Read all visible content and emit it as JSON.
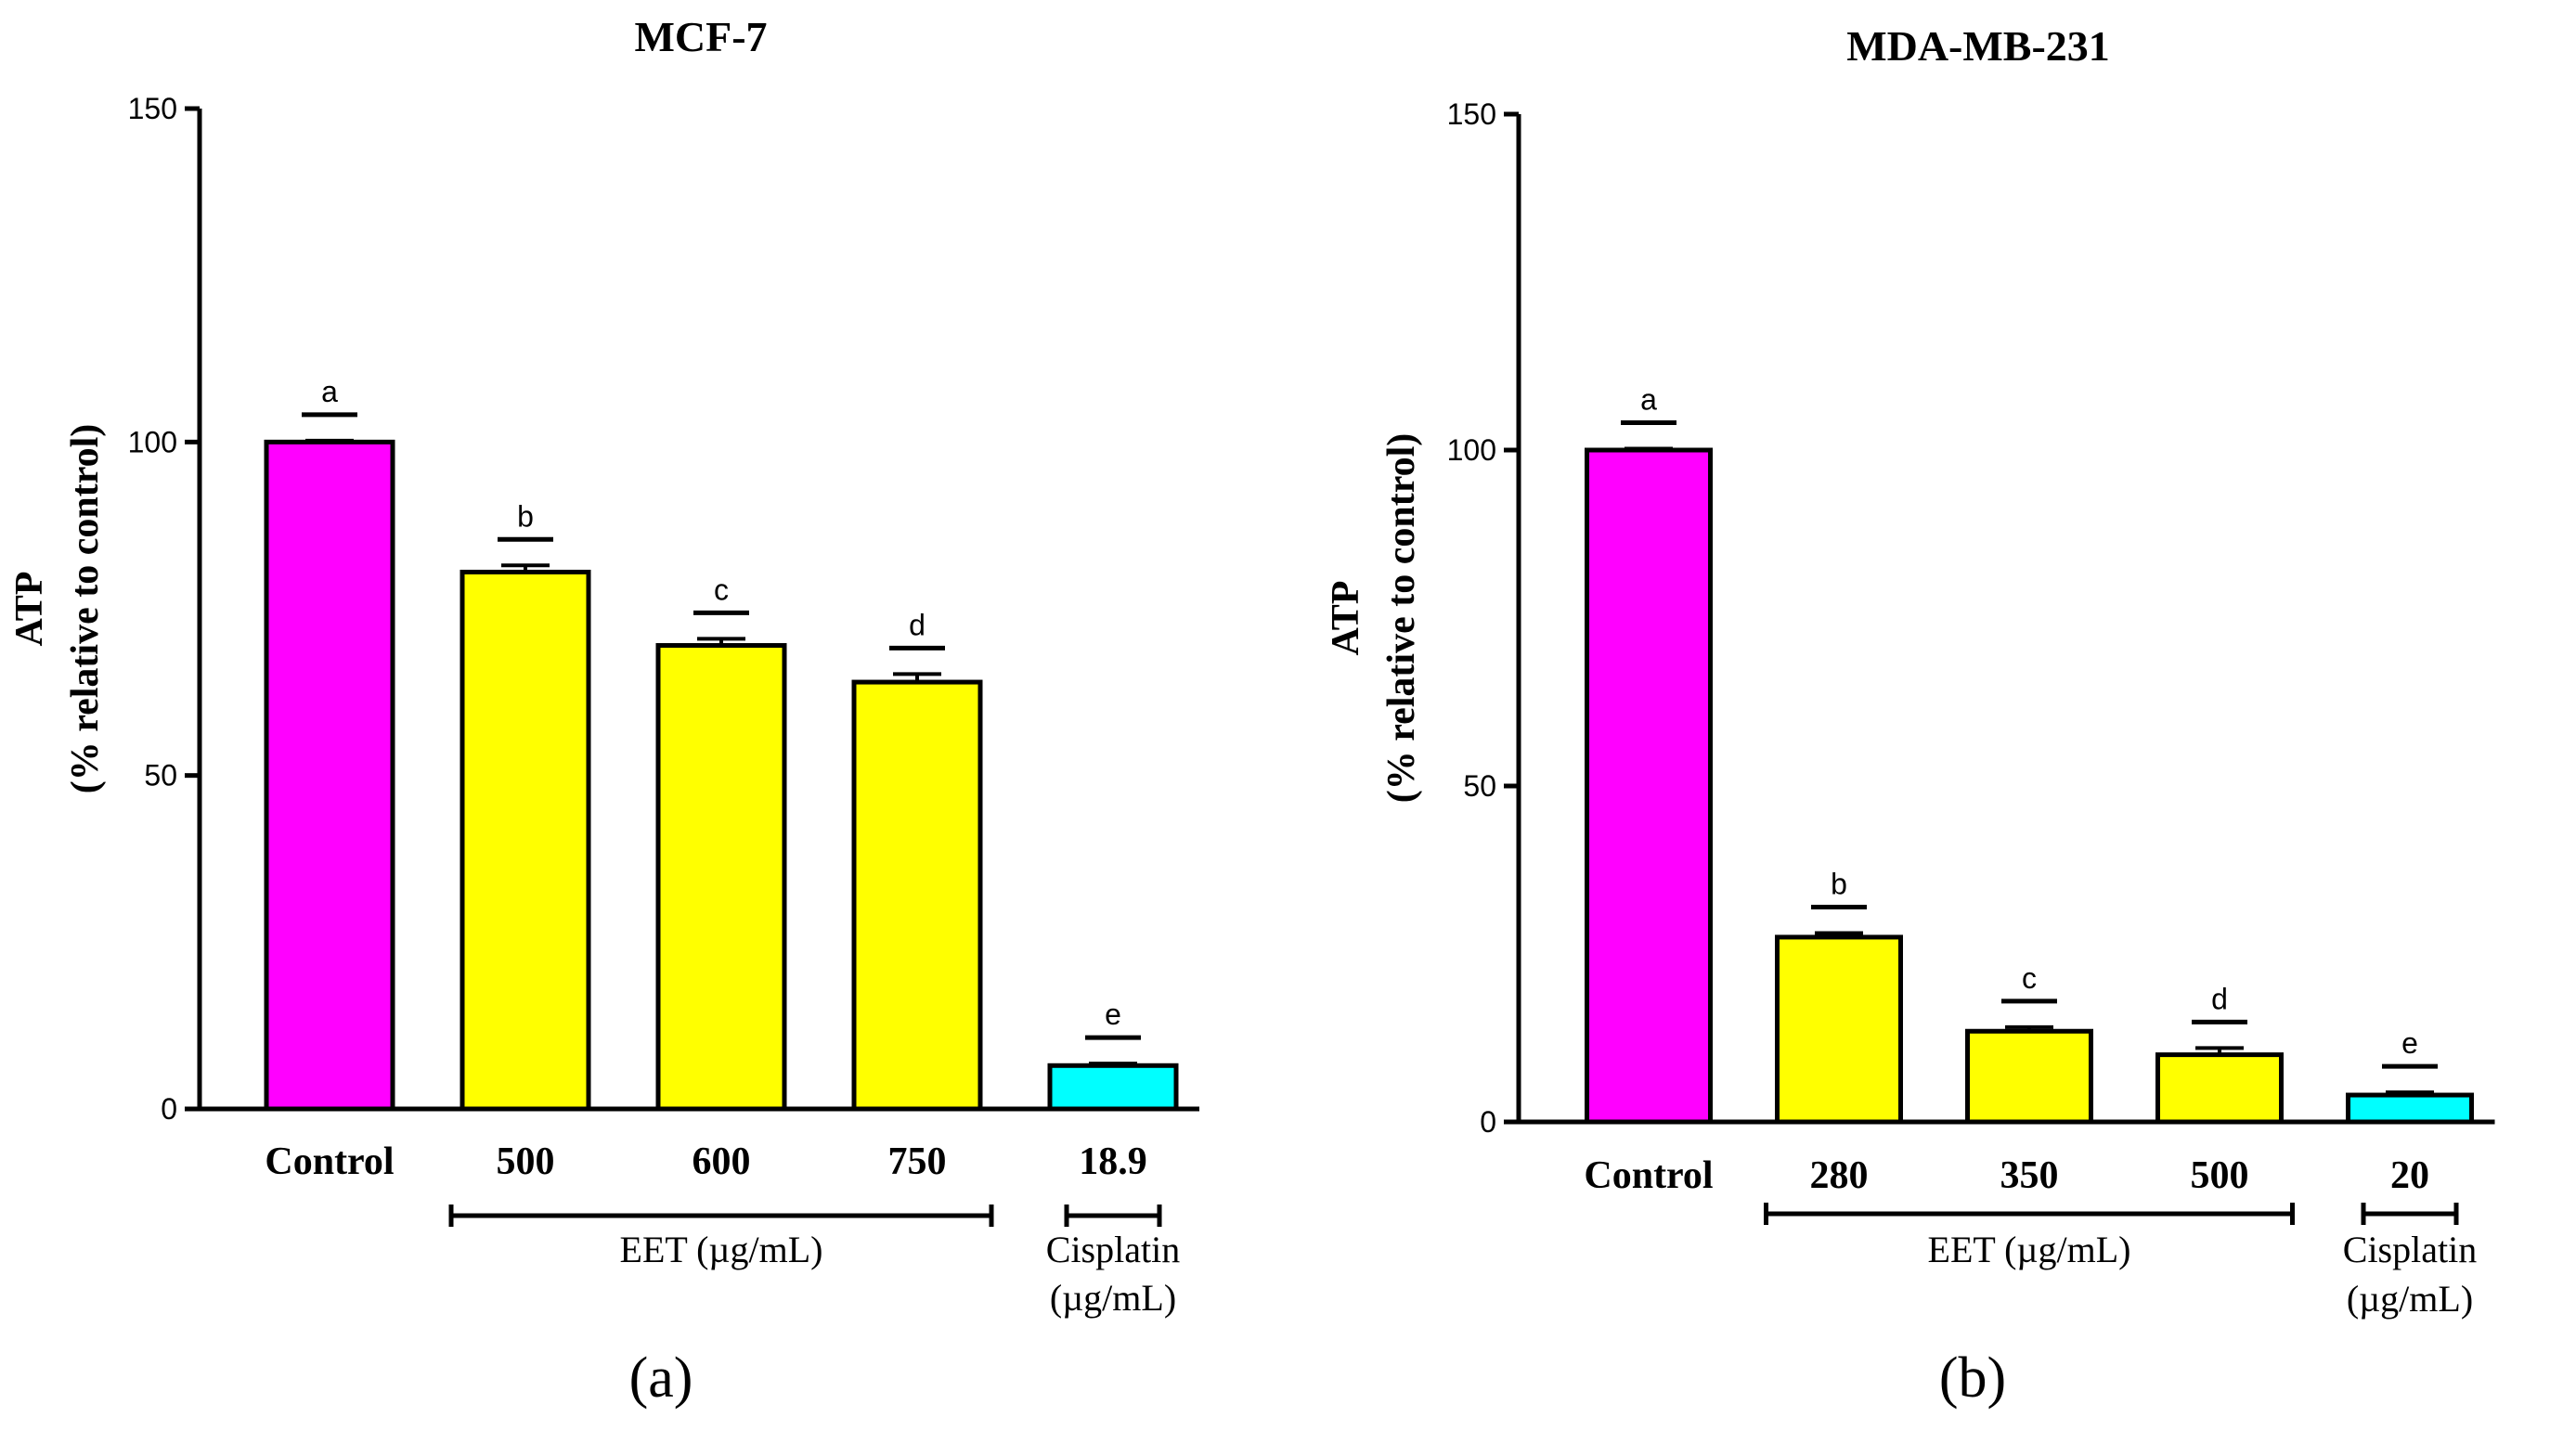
{
  "chart_data": [
    {
      "type": "bar",
      "panel_label": "(a)",
      "title": "MCF-7",
      "ylabel": "ATP",
      "ylabel2": "(% relative to control)",
      "ylim": [
        0,
        150
      ],
      "yticks": [
        "0",
        "50",
        "100",
        "150"
      ],
      "categories": [
        "Control",
        "500",
        "600",
        "750",
        "18.9"
      ],
      "values": [
        100,
        80.5,
        69.5,
        64,
        6.5
      ],
      "errors": [
        0.2,
        1,
        1,
        1.2,
        0.3
      ],
      "significance": [
        "a",
        "b",
        "c",
        "d",
        "e"
      ],
      "colors": [
        "#ff00ff",
        "#ffff00",
        "#ffff00",
        "#ffff00",
        "#00ffff"
      ],
      "groups": [
        {
          "label": "EET (µg/mL)",
          "from": 1,
          "to": 3
        },
        {
          "label": "Cisplatin",
          "label2": "(µg/mL)",
          "from": 4,
          "to": 4
        }
      ]
    },
    {
      "type": "bar",
      "panel_label": "(b)",
      "title": "MDA-MB-231",
      "ylabel": "ATP",
      "ylabel2": "(% relative to control)",
      "ylim": [
        0,
        150
      ],
      "yticks": [
        "0",
        "50",
        "100",
        "150"
      ],
      "categories": [
        "Control",
        "280",
        "350",
        "500",
        "20"
      ],
      "values": [
        100,
        27.5,
        13.5,
        10,
        4
      ],
      "errors": [
        0.2,
        0.6,
        0.6,
        1,
        0.4
      ],
      "significance": [
        "a",
        "b",
        "c",
        "d",
        "e"
      ],
      "colors": [
        "#ff00ff",
        "#ffff00",
        "#ffff00",
        "#ffff00",
        "#00ffff"
      ],
      "groups": [
        {
          "label": "EET (µg/mL)",
          "from": 1,
          "to": 3
        },
        {
          "label": "Cisplatin",
          "label2": "(µg/mL)",
          "from": 4,
          "to": 4
        }
      ]
    }
  ]
}
